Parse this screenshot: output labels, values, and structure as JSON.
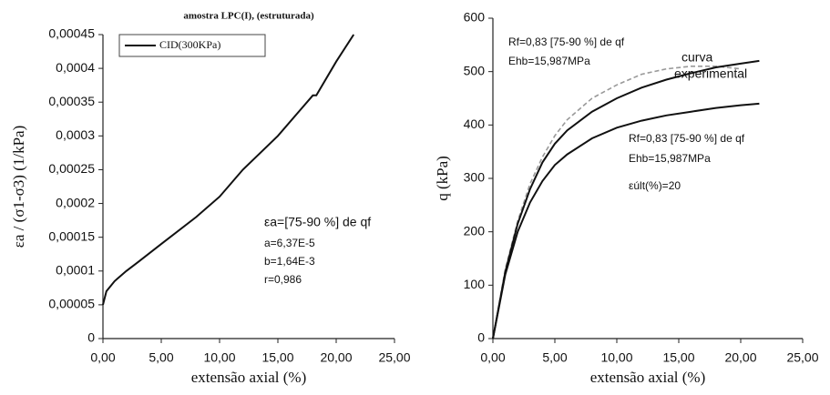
{
  "chart_data": [
    {
      "type": "line",
      "title": "amostra LPC(I), (estruturada)",
      "x_label": "extensão axial (%)",
      "y_label": "εa / (σ1-σ3) (1/kPa)",
      "x": [
        0,
        0.3,
        1,
        2,
        3,
        5,
        8,
        10,
        12,
        15,
        17,
        18,
        18.3,
        20,
        21.5
      ],
      "series": [
        {
          "name": "CID(300KPa)",
          "color": "#111111",
          "dash": false,
          "values": [
            5e-05,
            7e-05,
            8.5e-05,
            0.0001,
            0.000113,
            0.00014,
            0.00018,
            0.00021,
            0.00025,
            0.0003,
            0.00034,
            0.00036,
            0.00036,
            0.00041,
            0.00045
          ]
        }
      ],
      "annotations": [
        "εa=[75-90 %] de qf",
        "a=6,37E-5",
        "b=1,64E-3",
        "r=0,986"
      ],
      "xlim": [
        0,
        25
      ],
      "xticks": [
        {
          "value": 0,
          "label": "0,00"
        },
        {
          "value": 5,
          "label": "5,00"
        },
        {
          "value": 10,
          "label": "10,00"
        },
        {
          "value": 15,
          "label": "15,00"
        },
        {
          "value": 20,
          "label": "20,00"
        },
        {
          "value": 25,
          "label": "25,00"
        }
      ],
      "ylim": [
        0,
        0.00045
      ],
      "yticks": [
        0,
        {
          "value": 5e-05,
          "label": "0,00005"
        },
        {
          "value": 0.0001,
          "label": "0,0001"
        },
        {
          "value": 0.00015,
          "label": "0,00015"
        },
        {
          "value": 0.0002,
          "label": "0,0002"
        },
        {
          "value": 0.00025,
          "label": "0,00025"
        },
        {
          "value": 0.0003,
          "label": "0,0003"
        },
        {
          "value": 0.00035,
          "label": "0,00035"
        },
        {
          "value": 0.0004,
          "label": "0,0004"
        },
        {
          "value": 0.00045,
          "label": "0,00045"
        }
      ],
      "grid": false,
      "legend": "top-left"
    },
    {
      "type": "line",
      "x_label": "extensão axial (%)",
      "y_label": "q (kPa)",
      "x": [
        0,
        1,
        2,
        3,
        4,
        5,
        6,
        8,
        10,
        12,
        14,
        16,
        18,
        20,
        21.5
      ],
      "series": [
        {
          "color": "#999999",
          "dash": true,
          "values": [
            0,
            130,
            220,
            290,
            340,
            380,
            410,
            450,
            475,
            495,
            505,
            510,
            510,
            505,
            null
          ]
        },
        {
          "color": "#111111",
          "dash": false,
          "values": [
            0,
            125,
            215,
            280,
            330,
            365,
            390,
            425,
            450,
            470,
            485,
            497,
            508,
            515,
            520
          ]
        },
        {
          "color": "#111111",
          "dash": false,
          "values": [
            0,
            120,
            200,
            255,
            295,
            325,
            345,
            375,
            395,
            408,
            418,
            425,
            432,
            437,
            440
          ]
        }
      ],
      "annotations": [
        "Rf=0,83 [75-90 %] de qf",
        "Ehb=15,987MPa",
        "curva",
        "experimental",
        "Rf=0,83 [75-90 %] de qf",
        "Ehb=15,987MPa",
        "εúlt(%)=20"
      ],
      "xlim": [
        0,
        25
      ],
      "xticks": [
        {
          "value": 0,
          "label": "0,00"
        },
        {
          "value": 5,
          "label": "5,00"
        },
        {
          "value": 10,
          "label": "10,00"
        },
        {
          "value": 15,
          "label": "15,00"
        },
        {
          "value": 20,
          "label": "20,00"
        },
        {
          "value": 25,
          "label": "25,00"
        }
      ],
      "ylim": [
        0,
        600
      ],
      "yticks": [
        0,
        100,
        200,
        300,
        400,
        500,
        600
      ],
      "grid": false
    }
  ]
}
